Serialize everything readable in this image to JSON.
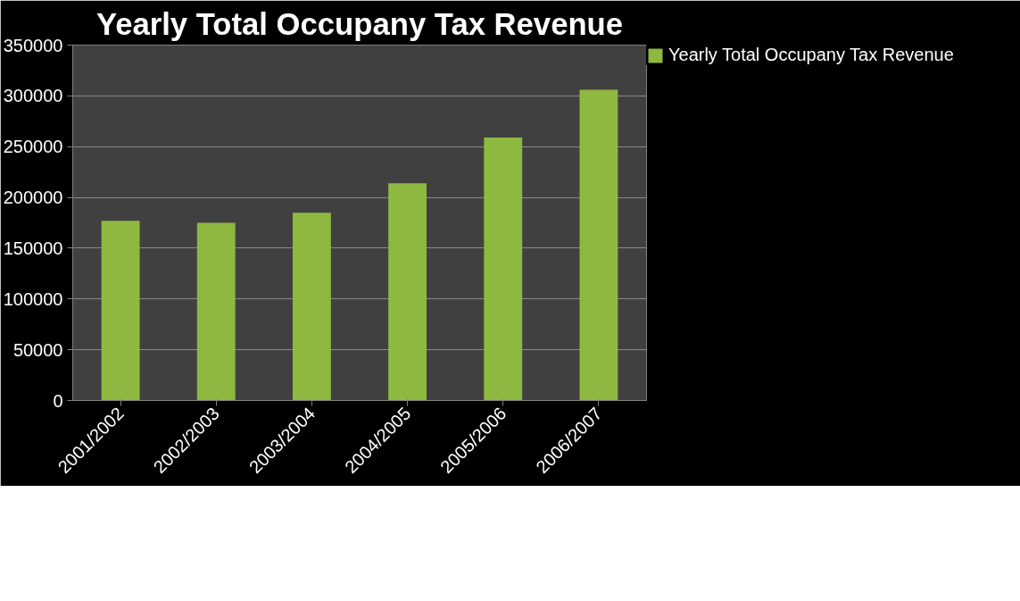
{
  "chart_data": {
    "type": "bar",
    "title": "Yearly Total Occupany Tax Revenue",
    "categories": [
      "2001/2002",
      "2002/2003",
      "2003/2004",
      "2004/2005",
      "2005/2006",
      "2006/2007"
    ],
    "series": [
      {
        "name": "Yearly Total Occupany Tax Revenue",
        "color": "#8fb840",
        "values": [
          177000,
          175000,
          185000,
          214000,
          259000,
          306000
        ]
      }
    ],
    "ylim": [
      0,
      350000
    ],
    "yticks": [
      0,
      50000,
      100000,
      150000,
      200000,
      250000,
      300000,
      350000
    ],
    "grid": "y",
    "legend": "right"
  }
}
